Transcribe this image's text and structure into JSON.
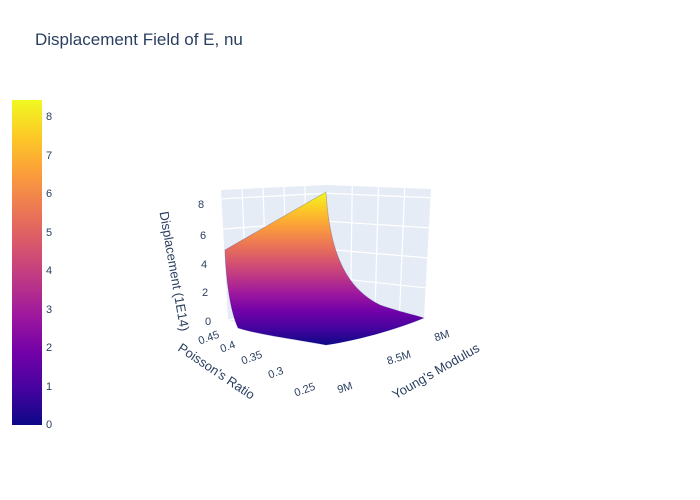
{
  "chart_data": {
    "type": "surface",
    "title": "Displacement Field of E, nu",
    "xlabel": "Young's Modulus",
    "ylabel": "Poisson's Ratio",
    "zlabel": "Displacement (1E14)",
    "x_ticks": [
      "8M",
      "8.5M",
      "9M"
    ],
    "y_ticks": [
      "0.45",
      "0.4",
      "0.35",
      "0.3",
      "0.25"
    ],
    "z_ticks": [
      "0",
      "2",
      "4",
      "6",
      "8"
    ],
    "xlim": [
      8000000,
      9000000
    ],
    "ylim": [
      0.25,
      0.45
    ],
    "zlim": [
      0,
      8
    ],
    "colorbar_ticks": [
      "0",
      "1",
      "2",
      "3",
      "4",
      "5",
      "6",
      "7",
      "8"
    ],
    "colorscale": [
      "#0d0887",
      "#46039f",
      "#7201a8",
      "#9c179e",
      "#bd3786",
      "#d8576b",
      "#ed7953",
      "#fb9f3a",
      "#fdca26",
      "#f0f921"
    ],
    "corner_values": {
      "E8M_nu045": 0,
      "E9M_nu045": 5,
      "E9M_nu025": 8.2,
      "E8M_nu025": 0
    },
    "grid": true
  }
}
